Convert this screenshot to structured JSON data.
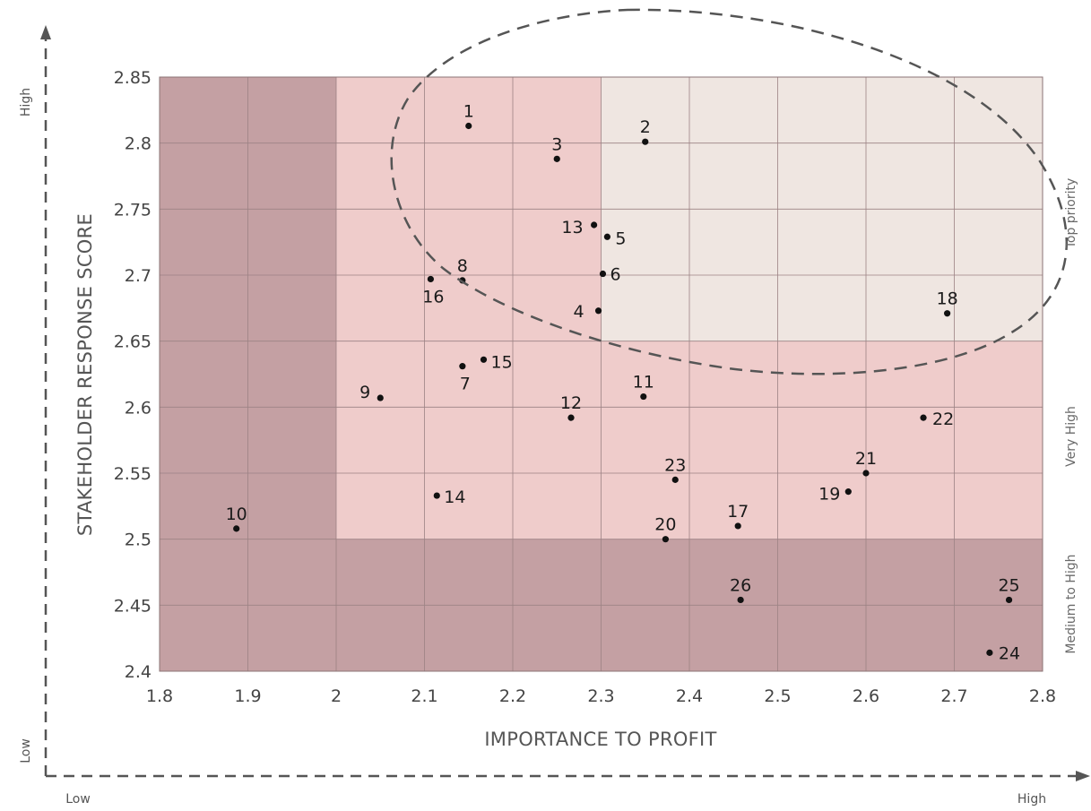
{
  "chart_data": {
    "type": "scatter",
    "xlabel": "IMPORTANCE TO PROFIT",
    "ylabel": "STAKEHOLDER RESPONSE SCORE",
    "xlim": [
      1.8,
      2.8
    ],
    "ylim": [
      2.4,
      2.85
    ],
    "x_ticks": [
      "1.8",
      "1.9",
      "2",
      "2.1",
      "2.2",
      "2.3",
      "2.4",
      "2.5",
      "2.6",
      "2.7",
      "2.8"
    ],
    "y_ticks": [
      "2.4",
      "2.45",
      "2.5",
      "2.55",
      "2.6",
      "2.65",
      "2.7",
      "2.75",
      "2.8",
      "2.85"
    ],
    "grid": true,
    "zones": [
      {
        "name": "Top priority",
        "x_range": [
          2.3,
          2.8
        ],
        "y_range": [
          2.65,
          2.85
        ],
        "color": "#efe6e1"
      },
      {
        "name": "Very High",
        "y_range": [
          2.5,
          2.65
        ],
        "color": "#efcccb"
      },
      {
        "name": "Medium to High",
        "y_range": [
          2.4,
          2.5
        ],
        "color": "#c4a0a3"
      }
    ],
    "points": [
      {
        "label": "1",
        "x": 2.15,
        "y": 2.813
      },
      {
        "label": "2",
        "x": 2.35,
        "y": 2.801
      },
      {
        "label": "3",
        "x": 2.25,
        "y": 2.788
      },
      {
        "label": "4",
        "x": 2.297,
        "y": 2.673
      },
      {
        "label": "5",
        "x": 2.307,
        "y": 2.729
      },
      {
        "label": "6",
        "x": 2.302,
        "y": 2.701
      },
      {
        "label": "7",
        "x": 2.143,
        "y": 2.631
      },
      {
        "label": "8",
        "x": 2.143,
        "y": 2.696
      },
      {
        "label": "9",
        "x": 2.05,
        "y": 2.607
      },
      {
        "label": "10",
        "x": 1.887,
        "y": 2.508
      },
      {
        "label": "11",
        "x": 2.348,
        "y": 2.608
      },
      {
        "label": "12",
        "x": 2.266,
        "y": 2.592
      },
      {
        "label": "13",
        "x": 2.292,
        "y": 2.738
      },
      {
        "label": "14",
        "x": 2.114,
        "y": 2.533
      },
      {
        "label": "15",
        "x": 2.167,
        "y": 2.636
      },
      {
        "label": "16",
        "x": 2.107,
        "y": 2.697
      },
      {
        "label": "17",
        "x": 2.455,
        "y": 2.51
      },
      {
        "label": "18",
        "x": 2.692,
        "y": 2.671
      },
      {
        "label": "19",
        "x": 2.58,
        "y": 2.536
      },
      {
        "label": "20",
        "x": 2.373,
        "y": 2.5
      },
      {
        "label": "21",
        "x": 2.6,
        "y": 2.55
      },
      {
        "label": "22",
        "x": 2.665,
        "y": 2.592
      },
      {
        "label": "23",
        "x": 2.384,
        "y": 2.545
      },
      {
        "label": "24",
        "x": 2.74,
        "y": 2.414
      },
      {
        "label": "25",
        "x": 2.762,
        "y": 2.454
      },
      {
        "label": "26",
        "x": 2.458,
        "y": 2.454
      }
    ],
    "zone_labels": {
      "top": "Top priority",
      "mid": "Very High",
      "low": "Medium to High"
    },
    "outer_axes": {
      "y_high": "High",
      "y_low": "Low",
      "x_low": "Low",
      "x_high": "High"
    }
  }
}
